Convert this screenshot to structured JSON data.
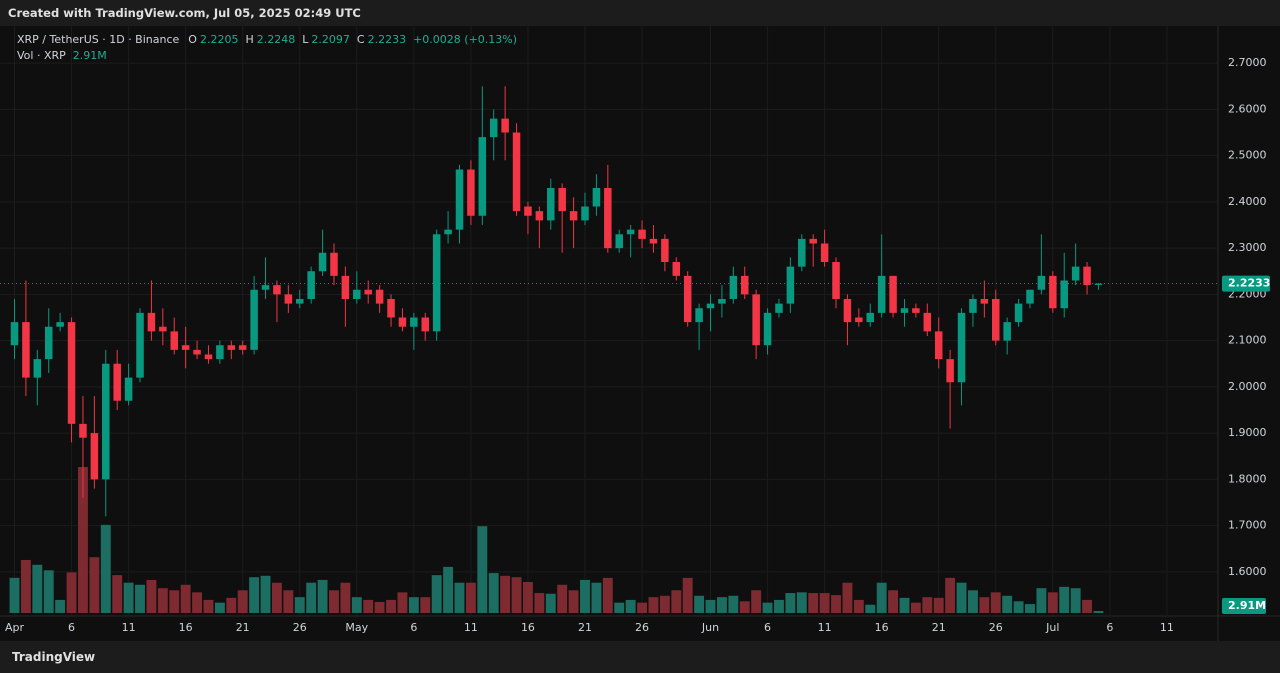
{
  "banner": "Created with TradingView.com, Jul 05, 2025 02:49 UTC",
  "footer": "TradingView",
  "chart_data": {
    "type": "candlestick",
    "title": "XRP / TetherUS · 1D · Binance",
    "ohlc_labels": [
      "O",
      "H",
      "L",
      "C"
    ],
    "change": "+0.0028 (+0.13%)",
    "up_color": "#089981",
    "down_color": "#f23645",
    "volume_up_color": "#1d6e62",
    "volume_down_color": "#7d2a30",
    "grid": true,
    "ylim": [
      1.511,
      2.776
    ],
    "yticks": [
      {
        "value": 1.6,
        "label": "1.6000"
      },
      {
        "value": 1.7,
        "label": "1.7000"
      },
      {
        "value": 1.8,
        "label": "1.8000"
      },
      {
        "value": 1.9,
        "label": "1.9000"
      },
      {
        "value": 2.0,
        "label": "2.0000"
      },
      {
        "value": 2.1,
        "label": "2.1000"
      },
      {
        "value": 2.2,
        "label": "2.2000"
      },
      {
        "value": 2.3,
        "label": "2.3000"
      },
      {
        "value": 2.4,
        "label": "2.4000"
      },
      {
        "value": 2.5,
        "label": "2.5000"
      },
      {
        "value": 2.6,
        "label": "2.6000"
      },
      {
        "value": 2.7,
        "label": "2.7000"
      }
    ],
    "xticks": [
      {
        "value": "2025-04-01",
        "label": "Apr"
      },
      {
        "value": "2025-04-06",
        "label": "6"
      },
      {
        "value": "2025-04-11",
        "label": "11"
      },
      {
        "value": "2025-04-16",
        "label": "16"
      },
      {
        "value": "2025-04-21",
        "label": "21"
      },
      {
        "value": "2025-04-26",
        "label": "26"
      },
      {
        "value": "2025-05-01",
        "label": "May"
      },
      {
        "value": "2025-05-06",
        "label": "6"
      },
      {
        "value": "2025-05-11",
        "label": "11"
      },
      {
        "value": "2025-05-16",
        "label": "16"
      },
      {
        "value": "2025-05-21",
        "label": "21"
      },
      {
        "value": "2025-05-26",
        "label": "26"
      },
      {
        "value": "2025-06-01",
        "label": "Jun"
      },
      {
        "value": "2025-06-06",
        "label": "6"
      },
      {
        "value": "2025-06-11",
        "label": "11"
      },
      {
        "value": "2025-06-16",
        "label": "16"
      },
      {
        "value": "2025-06-21",
        "label": "21"
      },
      {
        "value": "2025-06-26",
        "label": "26"
      },
      {
        "value": "2025-07-01",
        "label": "Jul"
      },
      {
        "value": "2025-07-06",
        "label": "6"
      },
      {
        "value": "2025-07-11",
        "label": "11"
      }
    ],
    "x": [
      "2025-04-01",
      "2025-04-02",
      "2025-04-03",
      "2025-04-04",
      "2025-04-05",
      "2025-04-06",
      "2025-04-07",
      "2025-04-08",
      "2025-04-09",
      "2025-04-10",
      "2025-04-11",
      "2025-04-12",
      "2025-04-13",
      "2025-04-14",
      "2025-04-15",
      "2025-04-16",
      "2025-04-17",
      "2025-04-18",
      "2025-04-19",
      "2025-04-20",
      "2025-04-21",
      "2025-04-22",
      "2025-04-23",
      "2025-04-24",
      "2025-04-25",
      "2025-04-26",
      "2025-04-27",
      "2025-04-28",
      "2025-04-29",
      "2025-04-30",
      "2025-05-01",
      "2025-05-02",
      "2025-05-03",
      "2025-05-04",
      "2025-05-05",
      "2025-05-06",
      "2025-05-07",
      "2025-05-08",
      "2025-05-09",
      "2025-05-10",
      "2025-05-11",
      "2025-05-12",
      "2025-05-13",
      "2025-05-14",
      "2025-05-15",
      "2025-05-16",
      "2025-05-17",
      "2025-05-18",
      "2025-05-19",
      "2025-05-20",
      "2025-05-21",
      "2025-05-22",
      "2025-05-23",
      "2025-05-24",
      "2025-05-25",
      "2025-05-26",
      "2025-05-27",
      "2025-05-28",
      "2025-05-29",
      "2025-05-30",
      "2025-05-31",
      "2025-06-01",
      "2025-06-02",
      "2025-06-03",
      "2025-06-04",
      "2025-06-05",
      "2025-06-06",
      "2025-06-07",
      "2025-06-08",
      "2025-06-09",
      "2025-06-10",
      "2025-06-11",
      "2025-06-12",
      "2025-06-13",
      "2025-06-14",
      "2025-06-15",
      "2025-06-16",
      "2025-06-17",
      "2025-06-18",
      "2025-06-19",
      "2025-06-20",
      "2025-06-21",
      "2025-06-22",
      "2025-06-23",
      "2025-06-24",
      "2025-06-25",
      "2025-06-26",
      "2025-06-27",
      "2025-06-28",
      "2025-06-29",
      "2025-06-30",
      "2025-07-01",
      "2025-07-02",
      "2025-07-03",
      "2025-07-04",
      "2025-07-05"
    ],
    "open": [
      2.09,
      2.14,
      2.02,
      2.06,
      2.13,
      2.14,
      1.92,
      1.9,
      1.8,
      2.05,
      1.97,
      2.02,
      2.16,
      2.13,
      2.12,
      2.09,
      2.08,
      2.07,
      2.06,
      2.09,
      2.09,
      2.08,
      2.21,
      2.22,
      2.2,
      2.18,
      2.19,
      2.25,
      2.29,
      2.24,
      2.19,
      2.21,
      2.21,
      2.19,
      2.15,
      2.13,
      2.15,
      2.12,
      2.33,
      2.34,
      2.47,
      2.37,
      2.54,
      2.58,
      2.55,
      2.39,
      2.38,
      2.36,
      2.43,
      2.38,
      2.36,
      2.39,
      2.43,
      2.3,
      2.33,
      2.34,
      2.32,
      2.32,
      2.27,
      2.24,
      2.14,
      2.17,
      2.18,
      2.19,
      2.24,
      2.2,
      2.09,
      2.16,
      2.18,
      2.26,
      2.32,
      2.31,
      2.27,
      2.19,
      2.15,
      2.14,
      2.16,
      2.24,
      2.16,
      2.17,
      2.16,
      2.12,
      2.06,
      2.01,
      2.16,
      2.19,
      2.19,
      2.1,
      2.14,
      2.18,
      2.21,
      2.24,
      2.17,
      2.23,
      2.26,
      2.2205
    ],
    "high": [
      2.19,
      2.23,
      2.08,
      2.17,
      2.16,
      2.15,
      1.98,
      1.98,
      2.08,
      2.08,
      2.05,
      2.17,
      2.23,
      2.17,
      2.15,
      2.13,
      2.1,
      2.09,
      2.1,
      2.1,
      2.1,
      2.24,
      2.28,
      2.23,
      2.22,
      2.21,
      2.26,
      2.34,
      2.31,
      2.26,
      2.25,
      2.23,
      2.22,
      2.2,
      2.17,
      2.16,
      2.16,
      2.34,
      2.38,
      2.48,
      2.49,
      2.65,
      2.6,
      2.65,
      2.57,
      2.4,
      2.39,
      2.45,
      2.44,
      2.41,
      2.42,
      2.46,
      2.48,
      2.34,
      2.35,
      2.36,
      2.35,
      2.33,
      2.28,
      2.25,
      2.18,
      2.2,
      2.22,
      2.26,
      2.26,
      2.21,
      2.17,
      2.19,
      2.28,
      2.33,
      2.33,
      2.34,
      2.28,
      2.2,
      2.17,
      2.18,
      2.33,
      2.24,
      2.19,
      2.18,
      2.18,
      2.15,
      2.08,
      2.17,
      2.2,
      2.23,
      2.21,
      2.15,
      2.19,
      2.21,
      2.33,
      2.25,
      2.29,
      2.31,
      2.27,
      2.2248
    ],
    "low": [
      2.06,
      1.98,
      1.96,
      2.03,
      2.12,
      1.88,
      1.76,
      1.78,
      1.72,
      1.95,
      1.96,
      2.01,
      2.1,
      2.09,
      2.07,
      2.04,
      2.06,
      2.05,
      2.05,
      2.06,
      2.07,
      2.07,
      2.19,
      2.14,
      2.16,
      2.17,
      2.18,
      2.24,
      2.22,
      2.13,
      2.18,
      2.18,
      2.16,
      2.13,
      2.12,
      2.08,
      2.1,
      2.1,
      2.31,
      2.31,
      2.35,
      2.35,
      2.49,
      2.49,
      2.37,
      2.33,
      2.3,
      2.34,
      2.29,
      2.3,
      2.35,
      2.37,
      2.29,
      2.29,
      2.28,
      2.3,
      2.29,
      2.25,
      2.23,
      2.13,
      2.08,
      2.12,
      2.15,
      2.18,
      2.19,
      2.06,
      2.07,
      2.15,
      2.16,
      2.25,
      2.26,
      2.26,
      2.17,
      2.09,
      2.13,
      2.13,
      2.15,
      2.15,
      2.13,
      2.15,
      2.11,
      2.04,
      1.91,
      1.96,
      2.13,
      2.15,
      2.09,
      2.07,
      2.13,
      2.17,
      2.2,
      2.16,
      2.15,
      2.22,
      2.2,
      2.2097
    ],
    "close": [
      2.14,
      2.02,
      2.06,
      2.13,
      2.14,
      1.92,
      1.89,
      1.8,
      2.05,
      1.97,
      2.02,
      2.16,
      2.12,
      2.12,
      2.08,
      2.08,
      2.07,
      2.06,
      2.09,
      2.08,
      2.08,
      2.21,
      2.22,
      2.2,
      2.18,
      2.19,
      2.25,
      2.29,
      2.24,
      2.19,
      2.21,
      2.2,
      2.18,
      2.15,
      2.13,
      2.15,
      2.12,
      2.33,
      2.34,
      2.47,
      2.37,
      2.54,
      2.58,
      2.55,
      2.38,
      2.37,
      2.36,
      2.43,
      2.38,
      2.36,
      2.39,
      2.43,
      2.3,
      2.33,
      2.34,
      2.32,
      2.31,
      2.27,
      2.24,
      2.14,
      2.17,
      2.18,
      2.19,
      2.24,
      2.2,
      2.09,
      2.16,
      2.18,
      2.26,
      2.32,
      2.31,
      2.27,
      2.19,
      2.14,
      2.14,
      2.16,
      2.24,
      2.16,
      2.17,
      2.16,
      2.12,
      2.06,
      2.01,
      2.16,
      2.19,
      2.18,
      2.1,
      2.14,
      2.18,
      2.21,
      2.24,
      2.17,
      2.23,
      2.26,
      2.22,
      2.2233
    ],
    "volume": {
      "name": "Vol · XRP",
      "label": "2.91M",
      "values": [
        51,
        77,
        70,
        62,
        19,
        59,
        212,
        81,
        128,
        55,
        44,
        41,
        48,
        36,
        33,
        41,
        30,
        19,
        15,
        22,
        33,
        52,
        54,
        44,
        33,
        23,
        44,
        48,
        33,
        44,
        23,
        19,
        16,
        19,
        30,
        23,
        23,
        55,
        67,
        44,
        44,
        126,
        58,
        54,
        52,
        45,
        29,
        28,
        41,
        33,
        48,
        44,
        51,
        15,
        19,
        15,
        23,
        25,
        33,
        51,
        25,
        19,
        23,
        25,
        17,
        33,
        15,
        19,
        29,
        30,
        29,
        29,
        26,
        44,
        19,
        12,
        44,
        33,
        22,
        15,
        23,
        22,
        51,
        44,
        33,
        23,
        30,
        25,
        17,
        13,
        36,
        30,
        38,
        36,
        19,
        2.91
      ]
    }
  }
}
